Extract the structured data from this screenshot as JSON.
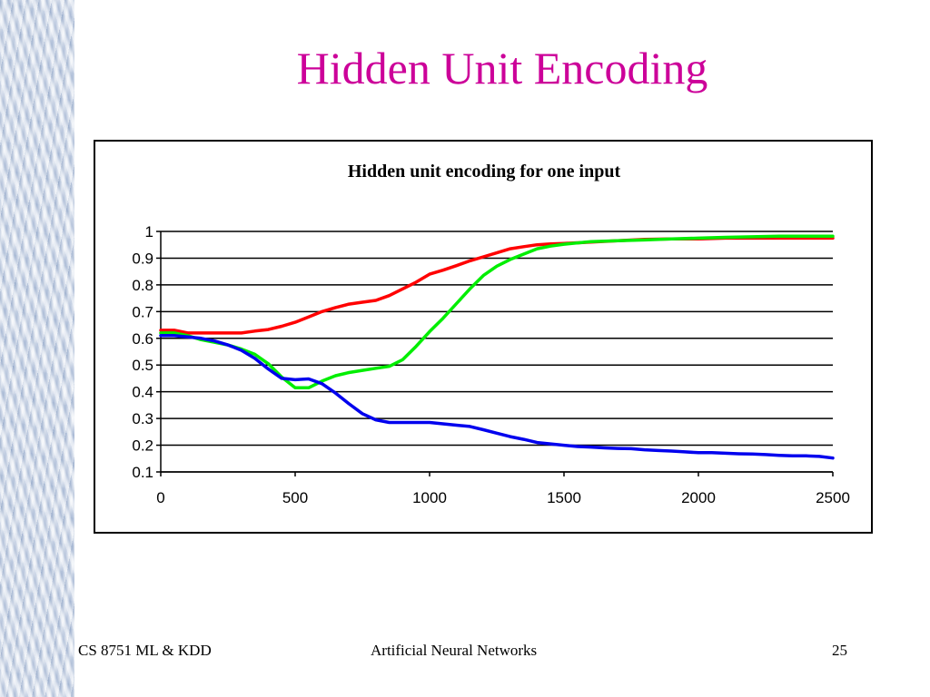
{
  "slide": {
    "title": "Hidden Unit Encoding",
    "footer_left": "CS 8751 ML & KDD",
    "footer_center": "Artificial Neural Networks",
    "page_number": "25"
  },
  "chart_data": {
    "type": "line",
    "title": "Hidden unit encoding for one input",
    "xlabel": "",
    "ylabel": "",
    "xlim": [
      0,
      2500
    ],
    "ylim": [
      0.1,
      1
    ],
    "x_ticks": [
      0,
      500,
      1000,
      1500,
      2000,
      2500
    ],
    "y_ticks": [
      0.1,
      0.2,
      0.3,
      0.4,
      0.5,
      0.6,
      0.7,
      0.8,
      0.9,
      1
    ],
    "grid": "horizontal",
    "legend": "none",
    "series": [
      {
        "color": "#ff0000",
        "x": [
          0,
          50,
          100,
          150,
          200,
          250,
          300,
          350,
          400,
          450,
          500,
          550,
          600,
          650,
          700,
          750,
          800,
          850,
          900,
          950,
          1000,
          1050,
          1100,
          1150,
          1200,
          1250,
          1300,
          1350,
          1400,
          1450,
          1500,
          1600,
          1700,
          1800,
          1900,
          2000,
          2100,
          2200,
          2300,
          2400,
          2500
        ],
        "y": [
          0.63,
          0.63,
          0.62,
          0.62,
          0.62,
          0.62,
          0.62,
          0.627,
          0.633,
          0.645,
          0.66,
          0.68,
          0.7,
          0.715,
          0.728,
          0.735,
          0.742,
          0.76,
          0.785,
          0.81,
          0.84,
          0.855,
          0.872,
          0.89,
          0.905,
          0.92,
          0.935,
          0.943,
          0.95,
          0.953,
          0.955,
          0.96,
          0.965,
          0.97,
          0.972,
          0.972,
          0.975,
          0.975,
          0.975,
          0.975,
          0.975
        ]
      },
      {
        "color": "#00ee00",
        "x": [
          0,
          50,
          100,
          150,
          200,
          250,
          300,
          350,
          400,
          450,
          500,
          550,
          600,
          650,
          700,
          750,
          800,
          850,
          900,
          950,
          1000,
          1050,
          1100,
          1150,
          1200,
          1250,
          1300,
          1350,
          1400,
          1450,
          1500,
          1600,
          1700,
          1800,
          1900,
          2000,
          2100,
          2200,
          2300,
          2400,
          2500
        ],
        "y": [
          0.62,
          0.62,
          0.61,
          0.595,
          0.585,
          0.575,
          0.56,
          0.54,
          0.505,
          0.455,
          0.415,
          0.415,
          0.44,
          0.46,
          0.472,
          0.48,
          0.488,
          0.495,
          0.52,
          0.57,
          0.625,
          0.675,
          0.73,
          0.785,
          0.835,
          0.87,
          0.895,
          0.915,
          0.935,
          0.945,
          0.952,
          0.962,
          0.965,
          0.968,
          0.972,
          0.975,
          0.978,
          0.98,
          0.982,
          0.982,
          0.982
        ]
      },
      {
        "color": "#0000ee",
        "x": [
          0,
          50,
          100,
          150,
          200,
          250,
          300,
          350,
          400,
          450,
          500,
          550,
          600,
          650,
          700,
          750,
          800,
          850,
          900,
          950,
          1000,
          1050,
          1100,
          1150,
          1200,
          1250,
          1300,
          1350,
          1400,
          1450,
          1500,
          1550,
          1600,
          1650,
          1700,
          1750,
          1800,
          1850,
          1900,
          1950,
          2000,
          2050,
          2100,
          2150,
          2200,
          2250,
          2300,
          2350,
          2400,
          2450,
          2500
        ],
        "y": [
          0.61,
          0.61,
          0.605,
          0.6,
          0.59,
          0.575,
          0.555,
          0.525,
          0.485,
          0.45,
          0.445,
          0.448,
          0.43,
          0.395,
          0.355,
          0.318,
          0.295,
          0.285,
          0.285,
          0.285,
          0.285,
          0.28,
          0.275,
          0.27,
          0.258,
          0.245,
          0.232,
          0.222,
          0.21,
          0.205,
          0.2,
          0.195,
          0.193,
          0.19,
          0.188,
          0.187,
          0.183,
          0.18,
          0.178,
          0.175,
          0.172,
          0.172,
          0.17,
          0.168,
          0.167,
          0.165,
          0.162,
          0.16,
          0.16,
          0.158,
          0.152
        ]
      }
    ]
  }
}
